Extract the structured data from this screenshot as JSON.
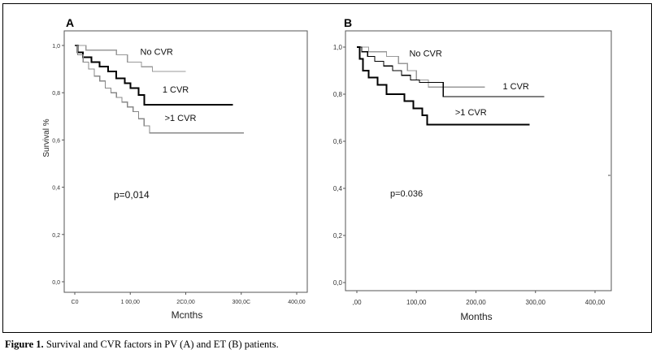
{
  "caption": {
    "label": "Figure 1.",
    "text": "Survival and CVR factors in PV (A) and ET (B) patients."
  },
  "chart_data": [
    {
      "type": "line",
      "panel_label": "A",
      "xlabel": "Mcnths",
      "ylabel": "Survival %",
      "xlim": [
        0,
        400
      ],
      "ylim": [
        0,
        1
      ],
      "x_ticks": [
        "C0",
        "1 00,00",
        "2C0,00",
        "300,0C",
        "400,00"
      ],
      "y_ticks": [
        "0,0",
        "0,2",
        "0,4",
        "0,6",
        "0,8",
        "1,0"
      ],
      "annotation": "p=0,014",
      "series": [
        {
          "name": "No CVR",
          "color": "#999999",
          "width": 1.2,
          "label_pos": [
            118,
            0.96
          ],
          "points": [
            [
              0,
              1
            ],
            [
              20,
              1
            ],
            [
              20,
              0.98
            ],
            [
              75,
              0.98
            ],
            [
              75,
              0.96
            ],
            [
              95,
              0.96
            ],
            [
              95,
              0.93
            ],
            [
              120,
              0.93
            ],
            [
              120,
              0.91
            ],
            [
              140,
              0.91
            ],
            [
              140,
              0.89
            ],
            [
              200,
              0.89
            ]
          ]
        },
        {
          "name": "1 CVR",
          "color": "#000000",
          "width": 2.0,
          "label_pos": [
            158,
            0.8
          ],
          "points": [
            [
              0,
              1
            ],
            [
              5,
              1
            ],
            [
              5,
              0.97
            ],
            [
              15,
              0.97
            ],
            [
              15,
              0.95
            ],
            [
              30,
              0.95
            ],
            [
              30,
              0.93
            ],
            [
              45,
              0.93
            ],
            [
              45,
              0.91
            ],
            [
              60,
              0.91
            ],
            [
              60,
              0.89
            ],
            [
              75,
              0.89
            ],
            [
              75,
              0.86
            ],
            [
              90,
              0.86
            ],
            [
              90,
              0.84
            ],
            [
              100,
              0.84
            ],
            [
              100,
              0.82
            ],
            [
              115,
              0.82
            ],
            [
              115,
              0.79
            ],
            [
              125,
              0.79
            ],
            [
              125,
              0.75
            ],
            [
              285,
              0.75
            ]
          ]
        },
        {
          "name": ">1 CVR",
          "color": "#888888",
          "width": 1.2,
          "label_pos": [
            162,
            0.68
          ],
          "points": [
            [
              0,
              1
            ],
            [
              5,
              1
            ],
            [
              5,
              0.96
            ],
            [
              15,
              0.96
            ],
            [
              15,
              0.93
            ],
            [
              25,
              0.93
            ],
            [
              25,
              0.9
            ],
            [
              35,
              0.9
            ],
            [
              35,
              0.87
            ],
            [
              45,
              0.87
            ],
            [
              45,
              0.85
            ],
            [
              55,
              0.85
            ],
            [
              55,
              0.82
            ],
            [
              65,
              0.82
            ],
            [
              65,
              0.8
            ],
            [
              75,
              0.8
            ],
            [
              75,
              0.78
            ],
            [
              85,
              0.78
            ],
            [
              85,
              0.76
            ],
            [
              95,
              0.76
            ],
            [
              95,
              0.74
            ],
            [
              105,
              0.74
            ],
            [
              105,
              0.72
            ],
            [
              115,
              0.72
            ],
            [
              115,
              0.69
            ],
            [
              125,
              0.69
            ],
            [
              125,
              0.66
            ],
            [
              135,
              0.66
            ],
            [
              135,
              0.63
            ],
            [
              305,
              0.63
            ]
          ]
        }
      ]
    },
    {
      "type": "line",
      "panel_label": "B",
      "xlabel": "Months",
      "ylabel": "",
      "xlim": [
        0,
        400
      ],
      "ylim": [
        0,
        1
      ],
      "x_ticks": [
        ",00",
        "100,00",
        "200,00",
        "300,00",
        "400,00"
      ],
      "y_ticks": [
        "0,0",
        "0,2",
        "0,4",
        "0,6",
        "0,8",
        "1,0"
      ],
      "annotation": "p=0.036",
      "series": [
        {
          "name": "No CVR",
          "color": "#999999",
          "width": 1.2,
          "label_pos": [
            88,
            0.96
          ],
          "points": [
            [
              0,
              1
            ],
            [
              20,
              1
            ],
            [
              20,
              0.98
            ],
            [
              50,
              0.98
            ],
            [
              50,
              0.96
            ],
            [
              70,
              0.96
            ],
            [
              70,
              0.93
            ],
            [
              85,
              0.93
            ],
            [
              85,
              0.9
            ],
            [
              100,
              0.9
            ],
            [
              100,
              0.86
            ],
            [
              120,
              0.86
            ],
            [
              120,
              0.83
            ],
            [
              215,
              0.83
            ]
          ]
        },
        {
          "name": "1 CVR",
          "color": "#000000",
          "width": 1.2,
          "label_pos": [
            245,
            0.82
          ],
          "points": [
            [
              0,
              1
            ],
            [
              8,
              1
            ],
            [
              8,
              0.98
            ],
            [
              18,
              0.98
            ],
            [
              18,
              0.96
            ],
            [
              30,
              0.96
            ],
            [
              30,
              0.94
            ],
            [
              45,
              0.94
            ],
            [
              45,
              0.92
            ],
            [
              60,
              0.92
            ],
            [
              60,
              0.9
            ],
            [
              75,
              0.9
            ],
            [
              75,
              0.88
            ],
            [
              90,
              0.88
            ],
            [
              90,
              0.86
            ],
            [
              105,
              0.86
            ],
            [
              105,
              0.85
            ],
            [
              145,
              0.85
            ],
            [
              145,
              0.79
            ],
            [
              315,
              0.79
            ]
          ]
        },
        {
          "name": ">1 CVR",
          "color": "#000000",
          "width": 2.0,
          "label_pos": [
            165,
            0.71
          ],
          "points": [
            [
              0,
              1
            ],
            [
              5,
              1
            ],
            [
              5,
              0.95
            ],
            [
              10,
              0.95
            ],
            [
              10,
              0.9
            ],
            [
              20,
              0.9
            ],
            [
              20,
              0.87
            ],
            [
              35,
              0.87
            ],
            [
              35,
              0.84
            ],
            [
              50,
              0.84
            ],
            [
              50,
              0.8
            ],
            [
              80,
              0.8
            ],
            [
              80,
              0.77
            ],
            [
              95,
              0.77
            ],
            [
              95,
              0.74
            ],
            [
              110,
              0.74
            ],
            [
              110,
              0.71
            ],
            [
              118,
              0.71
            ],
            [
              118,
              0.67
            ],
            [
              290,
              0.67
            ]
          ]
        }
      ]
    }
  ]
}
